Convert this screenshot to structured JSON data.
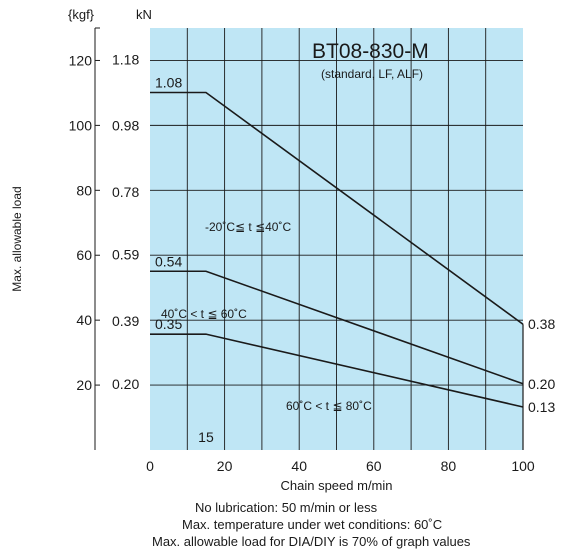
{
  "chart_data": {
    "type": "line",
    "title": "BT08-830-M",
    "subtitle": "(standard, LF, ALF)",
    "xlabel": "Chain speed m/min",
    "ylabel": "Max. allowable load",
    "y_unit_kgf": "{kgf}",
    "y_unit_kn": "kN",
    "xlim": [
      0,
      100
    ],
    "ylim_kgf": [
      0,
      130
    ],
    "x_ticks": [
      "0",
      "20",
      "40",
      "60",
      "80",
      "100"
    ],
    "kgf_ticks": [
      "20",
      "40",
      "60",
      "80",
      "100",
      "120"
    ],
    "kn_ticks": [
      "0.20",
      "0.39",
      "0.59",
      "0.78",
      "0.98",
      "1.18"
    ],
    "grid": true,
    "background_color": "#bfe6f5",
    "line_color": "#1a1a1a",
    "series": [
      {
        "name": "-20˚C≦ t ≦40˚C",
        "x": [
          0,
          15,
          100
        ],
        "y_kn": [
          1.08,
          1.08,
          0.38
        ],
        "start_label": "1.08",
        "end_label": "0.38"
      },
      {
        "name": "40˚C < t ≦ 60˚C",
        "x": [
          0,
          15,
          100
        ],
        "y_kn": [
          0.54,
          0.54,
          0.2
        ],
        "start_label": "0.54",
        "end_label": "0.20"
      },
      {
        "name": "60˚C < t ≦ 80˚C",
        "x": [
          0,
          15,
          100
        ],
        "y_kn": [
          0.35,
          0.35,
          0.13
        ],
        "start_label": "0.35",
        "end_label": "0.13"
      }
    ],
    "annotations": [
      "15"
    ]
  },
  "notes": {
    "line1": "No lubrication: 50 m/min or less",
    "line2": "Max. temperature under wet conditions: 60˚C",
    "line3": "Max. allowable load for DIA/DIY is 70% of graph values"
  }
}
